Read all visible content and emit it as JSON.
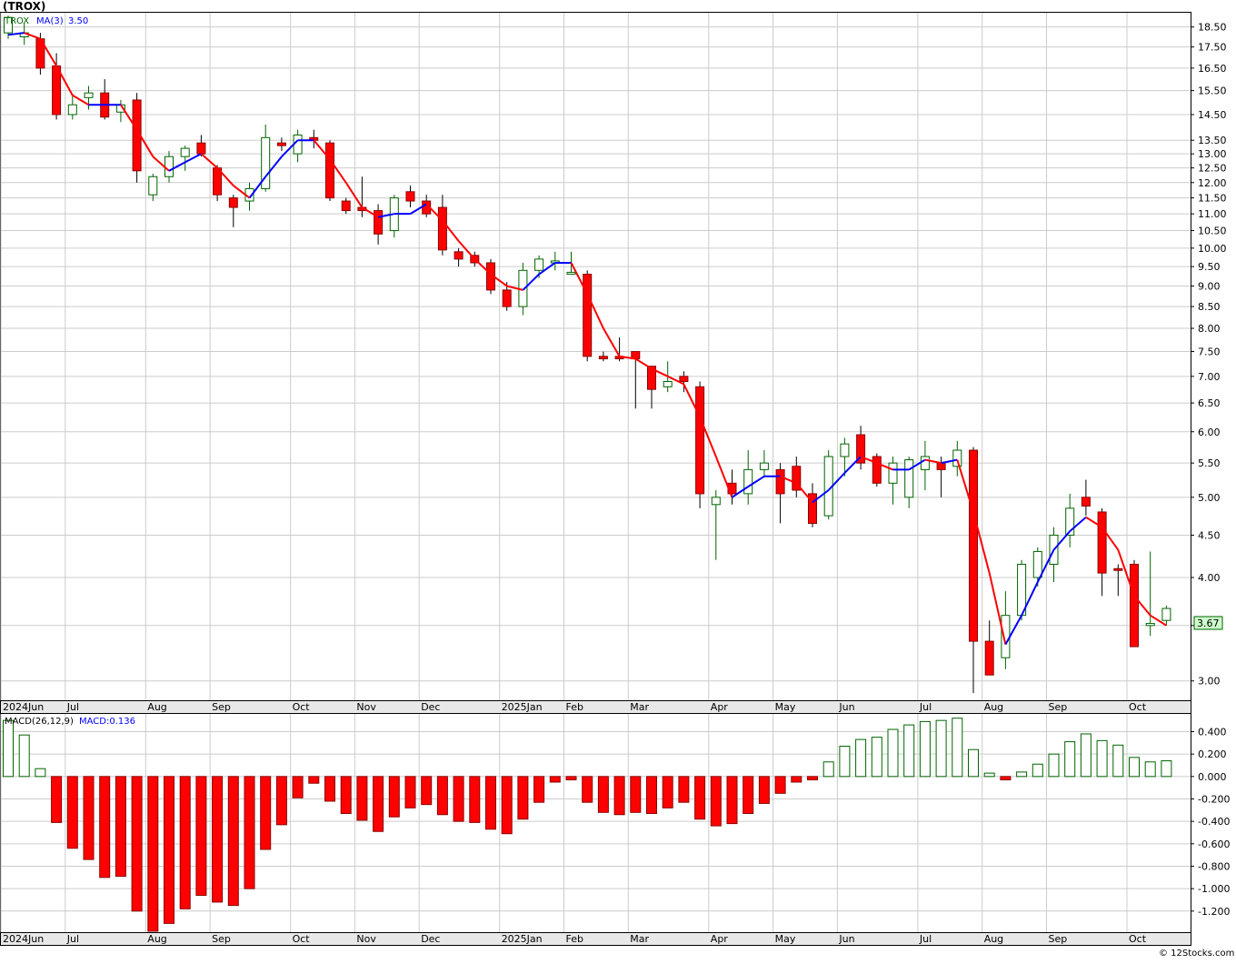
{
  "header": {
    "title": "(TROX)",
    "ticker_label": "TROX",
    "ma_label": "MA(3)",
    "ma_value": "3.50",
    "macd_label": "MACD(26,12,9)",
    "macd_value_label": "MACD:0.136",
    "last_price_badge": "3.67",
    "credit": "© 12Stocks.com"
  },
  "colors": {
    "up_candle_stroke": "#006400",
    "down_candle_fill": "#ff0000",
    "ma_up": "#0000ff",
    "ma_down": "#ff0000",
    "grid": "#cccccc",
    "macd_pos": "#006400",
    "macd_neg": "#ff0000",
    "legend_ticker": "#006400",
    "legend_ma": "#0000ff"
  },
  "chart_data": [
    {
      "type": "candlestick",
      "name": "TROX weekly price",
      "y_scale": "log",
      "ylim": [
        2.85,
        19.2
      ],
      "y_ticks": [
        "18.50",
        "17.50",
        "16.50",
        "15.50",
        "14.50",
        "13.50",
        "13.00",
        "12.50",
        "12.00",
        "11.50",
        "11.00",
        "10.50",
        "10.00",
        "9.50",
        "9.00",
        "8.50",
        "8.00",
        "7.50",
        "7.00",
        "6.50",
        "6.00",
        "5.50",
        "5.00",
        "4.50",
        "4.00",
        "3.50",
        "3.00"
      ],
      "months": [
        {
          "label": "2024Jun",
          "week": 0
        },
        {
          "label": "Jul",
          "week": 4
        },
        {
          "label": "Aug",
          "week": 9
        },
        {
          "label": "Sep",
          "week": 13
        },
        {
          "label": "Oct",
          "week": 18
        },
        {
          "label": "Nov",
          "week": 22
        },
        {
          "label": "Dec",
          "week": 26
        },
        {
          "label": "2025Jan",
          "week": 31
        },
        {
          "label": "Feb",
          "week": 35
        },
        {
          "label": "Mar",
          "week": 39
        },
        {
          "label": "Apr",
          "week": 44
        },
        {
          "label": "May",
          "week": 48
        },
        {
          "label": "Jun",
          "week": 52
        },
        {
          "label": "Jul",
          "week": 57
        },
        {
          "label": "Aug",
          "week": 61
        },
        {
          "label": "Sep",
          "week": 65
        },
        {
          "label": "Oct",
          "week": 70
        }
      ],
      "candles": [
        {
          "o": 18.2,
          "h": 19.1,
          "l": 17.9,
          "c": 19.0
        },
        {
          "o": 18.0,
          "h": 18.7,
          "l": 17.6,
          "c": 18.2
        },
        {
          "o": 17.9,
          "h": 18.2,
          "l": 16.2,
          "c": 16.5
        },
        {
          "o": 16.6,
          "h": 17.2,
          "l": 14.3,
          "c": 14.5
        },
        {
          "o": 14.5,
          "h": 15.3,
          "l": 14.3,
          "c": 14.9
        },
        {
          "o": 15.2,
          "h": 15.7,
          "l": 14.7,
          "c": 15.4
        },
        {
          "o": 15.4,
          "h": 16.0,
          "l": 14.3,
          "c": 14.4
        },
        {
          "o": 14.6,
          "h": 15.1,
          "l": 14.2,
          "c": 14.9
        },
        {
          "o": 15.1,
          "h": 15.4,
          "l": 12.0,
          "c": 12.4
        },
        {
          "o": 11.6,
          "h": 12.3,
          "l": 11.4,
          "c": 12.2
        },
        {
          "o": 12.2,
          "h": 13.1,
          "l": 12.0,
          "c": 12.9
        },
        {
          "o": 12.9,
          "h": 13.3,
          "l": 12.4,
          "c": 13.2
        },
        {
          "o": 13.4,
          "h": 13.7,
          "l": 12.9,
          "c": 13.0
        },
        {
          "o": 12.5,
          "h": 12.6,
          "l": 11.4,
          "c": 11.6
        },
        {
          "o": 11.5,
          "h": 11.6,
          "l": 10.6,
          "c": 11.2
        },
        {
          "o": 11.4,
          "h": 12.0,
          "l": 11.1,
          "c": 11.8
        },
        {
          "o": 11.8,
          "h": 14.1,
          "l": 11.7,
          "c": 13.6
        },
        {
          "o": 13.4,
          "h": 13.6,
          "l": 13.1,
          "c": 13.3
        },
        {
          "o": 13.0,
          "h": 13.9,
          "l": 12.7,
          "c": 13.7
        },
        {
          "o": 13.6,
          "h": 13.9,
          "l": 13.2,
          "c": 13.5
        },
        {
          "o": 13.4,
          "h": 13.5,
          "l": 11.4,
          "c": 11.5
        },
        {
          "o": 11.4,
          "h": 11.5,
          "l": 11.0,
          "c": 11.1
        },
        {
          "o": 11.2,
          "h": 12.2,
          "l": 10.9,
          "c": 11.1
        },
        {
          "o": 11.1,
          "h": 11.3,
          "l": 10.1,
          "c": 10.4
        },
        {
          "o": 10.5,
          "h": 11.6,
          "l": 10.3,
          "c": 11.5
        },
        {
          "o": 11.7,
          "h": 11.9,
          "l": 11.2,
          "c": 11.4
        },
        {
          "o": 11.4,
          "h": 11.6,
          "l": 10.9,
          "c": 11.0
        },
        {
          "o": 11.2,
          "h": 11.6,
          "l": 9.8,
          "c": 9.95
        },
        {
          "o": 9.9,
          "h": 10.0,
          "l": 9.5,
          "c": 9.7
        },
        {
          "o": 9.8,
          "h": 9.9,
          "l": 9.5,
          "c": 9.6
        },
        {
          "o": 9.6,
          "h": 9.7,
          "l": 8.8,
          "c": 8.9
        },
        {
          "o": 8.9,
          "h": 9.1,
          "l": 8.4,
          "c": 8.5
        },
        {
          "o": 8.5,
          "h": 9.6,
          "l": 8.3,
          "c": 9.4
        },
        {
          "o": 9.4,
          "h": 9.8,
          "l": 9.2,
          "c": 9.7
        },
        {
          "o": 9.6,
          "h": 9.9,
          "l": 9.4,
          "c": 9.65
        },
        {
          "o": 9.35,
          "h": 9.9,
          "l": 9.3,
          "c": 9.35
        },
        {
          "o": 9.3,
          "h": 9.4,
          "l": 7.3,
          "c": 7.4
        },
        {
          "o": 7.4,
          "h": 7.5,
          "l": 7.3,
          "c": 7.35
        },
        {
          "o": 7.4,
          "h": 7.8,
          "l": 7.3,
          "c": 7.35
        },
        {
          "o": 7.5,
          "h": 7.5,
          "l": 6.4,
          "c": 7.35
        },
        {
          "o": 7.2,
          "h": 7.2,
          "l": 6.4,
          "c": 6.75
        },
        {
          "o": 6.8,
          "h": 7.3,
          "l": 6.7,
          "c": 6.9
        },
        {
          "o": 7.0,
          "h": 7.1,
          "l": 6.7,
          "c": 6.9
        },
        {
          "o": 6.8,
          "h": 6.9,
          "l": 4.85,
          "c": 5.05
        },
        {
          "o": 4.9,
          "h": 5.1,
          "l": 4.2,
          "c": 5.0
        },
        {
          "o": 5.2,
          "h": 5.4,
          "l": 4.9,
          "c": 5.05
        },
        {
          "o": 5.05,
          "h": 5.7,
          "l": 4.9,
          "c": 5.4
        },
        {
          "o": 5.4,
          "h": 5.7,
          "l": 5.3,
          "c": 5.5
        },
        {
          "o": 5.4,
          "h": 5.5,
          "l": 4.65,
          "c": 5.05
        },
        {
          "o": 5.45,
          "h": 5.6,
          "l": 5.0,
          "c": 5.1
        },
        {
          "o": 5.05,
          "h": 5.2,
          "l": 4.6,
          "c": 4.65
        },
        {
          "o": 4.75,
          "h": 5.7,
          "l": 4.7,
          "c": 5.6
        },
        {
          "o": 5.6,
          "h": 5.9,
          "l": 5.3,
          "c": 5.8
        },
        {
          "o": 5.95,
          "h": 6.1,
          "l": 5.4,
          "c": 5.5
        },
        {
          "o": 5.6,
          "h": 5.65,
          "l": 5.15,
          "c": 5.2
        },
        {
          "o": 5.2,
          "h": 5.6,
          "l": 4.9,
          "c": 5.5
        },
        {
          "o": 5.0,
          "h": 5.6,
          "l": 4.85,
          "c": 5.55
        },
        {
          "o": 5.4,
          "h": 5.85,
          "l": 5.1,
          "c": 5.6
        },
        {
          "o": 5.5,
          "h": 5.6,
          "l": 5.0,
          "c": 5.4
        },
        {
          "o": 5.45,
          "h": 5.85,
          "l": 5.3,
          "c": 5.7
        },
        {
          "o": 5.7,
          "h": 5.75,
          "l": 2.9,
          "c": 3.35
        },
        {
          "o": 3.35,
          "h": 3.55,
          "l": 3.05,
          "c": 3.05
        },
        {
          "o": 3.2,
          "h": 3.85,
          "l": 3.1,
          "c": 3.6
        },
        {
          "o": 3.6,
          "h": 4.2,
          "l": 3.55,
          "c": 4.15
        },
        {
          "o": 4.0,
          "h": 4.35,
          "l": 3.9,
          "c": 4.3
        },
        {
          "o": 4.15,
          "h": 4.6,
          "l": 3.95,
          "c": 4.5
        },
        {
          "o": 4.5,
          "h": 5.05,
          "l": 4.35,
          "c": 4.85
        },
        {
          "o": 5.0,
          "h": 5.25,
          "l": 4.75,
          "c": 4.88
        },
        {
          "o": 4.8,
          "h": 4.85,
          "l": 3.8,
          "c": 4.05
        },
        {
          "o": 4.1,
          "h": 4.15,
          "l": 3.8,
          "c": 4.08
        },
        {
          "o": 4.15,
          "h": 4.2,
          "l": 3.3,
          "c": 3.3
        },
        {
          "o": 3.5,
          "h": 4.3,
          "l": 3.4,
          "c": 3.52
        },
        {
          "o": 3.55,
          "h": 3.7,
          "l": 3.5,
          "c": 3.67
        }
      ],
      "ma3": [
        18.1,
        18.2,
        17.9,
        16.6,
        15.3,
        14.9,
        14.9,
        14.9,
        13.9,
        12.9,
        12.4,
        12.7,
        13.0,
        12.5,
        11.9,
        11.5,
        12.2,
        12.9,
        13.5,
        13.5,
        12.8,
        12.0,
        11.2,
        10.9,
        11.0,
        11.0,
        11.3,
        10.8,
        10.2,
        9.7,
        9.3,
        9.0,
        8.9,
        9.3,
        9.6,
        9.6,
        8.8,
        8.0,
        7.4,
        7.35,
        7.15,
        7.0,
        6.85,
        6.25,
        5.6,
        5.0,
        5.15,
        5.3,
        5.3,
        5.2,
        4.93,
        5.1,
        5.35,
        5.6,
        5.5,
        5.4,
        5.4,
        5.55,
        5.5,
        5.55,
        4.8,
        4.05,
        3.32,
        3.6,
        3.95,
        4.32,
        4.55,
        4.73,
        4.6,
        4.32,
        3.8,
        3.6,
        3.5
      ]
    },
    {
      "type": "bar",
      "name": "MACD histogram",
      "ylim": [
        -1.38,
        0.55
      ],
      "y_ticks": [
        "0.400",
        "0.200",
        "0.000",
        "-0.200",
        "-0.400",
        "-0.600",
        "-0.800",
        "-1.000",
        "-1.200"
      ],
      "values": [
        0.5,
        0.37,
        0.07,
        -0.41,
        -0.64,
        -0.74,
        -0.9,
        -0.89,
        -1.2,
        -1.38,
        -1.31,
        -1.18,
        -1.06,
        -1.12,
        -1.15,
        -1.0,
        -0.65,
        -0.43,
        -0.19,
        -0.06,
        -0.22,
        -0.33,
        -0.39,
        -0.49,
        -0.36,
        -0.28,
        -0.25,
        -0.34,
        -0.4,
        -0.41,
        -0.47,
        -0.51,
        -0.38,
        -0.23,
        -0.05,
        -0.03,
        -0.23,
        -0.32,
        -0.34,
        -0.32,
        -0.33,
        -0.28,
        -0.23,
        -0.38,
        -0.44,
        -0.42,
        -0.33,
        -0.24,
        -0.15,
        -0.05,
        -0.03,
        0.13,
        0.27,
        0.33,
        0.35,
        0.42,
        0.46,
        0.49,
        0.5,
        0.52,
        0.24,
        0.03,
        -0.03,
        0.04,
        0.11,
        0.2,
        0.31,
        0.38,
        0.32,
        0.28,
        0.17,
        0.13,
        0.14
      ]
    }
  ]
}
